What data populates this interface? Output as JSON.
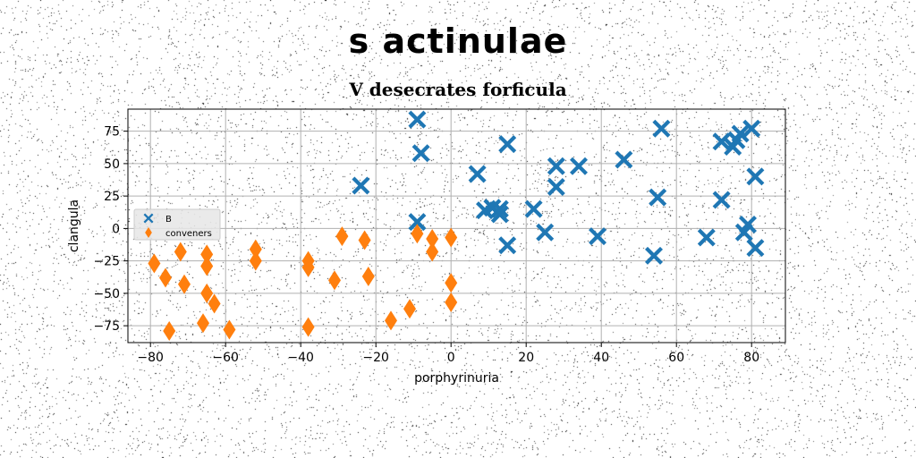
{
  "suptitle": "s actinulae",
  "chart_data": {
    "type": "scatter",
    "title": "V desecrates forficula",
    "xlabel": "porphyrinuria",
    "ylabel": "clangula",
    "xlim": [
      -86,
      89
    ],
    "ylim": [
      -88,
      92
    ],
    "xticks": [
      -80,
      -60,
      -40,
      -20,
      0,
      20,
      40,
      60,
      80
    ],
    "yticks": [
      -75,
      -50,
      -25,
      0,
      25,
      50,
      75
    ],
    "grid": true,
    "legend_position": "center-left",
    "series": [
      {
        "name": "B",
        "marker": "X",
        "color": "#1f77b4",
        "points": [
          [
            -9,
            84
          ],
          [
            -8,
            58
          ],
          [
            -24,
            33
          ],
          [
            -9,
            5
          ],
          [
            7,
            42
          ],
          [
            9,
            14
          ],
          [
            11,
            16
          ],
          [
            13,
            15
          ],
          [
            13,
            11
          ],
          [
            15,
            65
          ],
          [
            15,
            -13
          ],
          [
            22,
            15
          ],
          [
            25,
            -3
          ],
          [
            28,
            48
          ],
          [
            28,
            32
          ],
          [
            34,
            48
          ],
          [
            39,
            -6
          ],
          [
            46,
            53
          ],
          [
            55,
            24
          ],
          [
            56,
            77
          ],
          [
            54,
            -21
          ],
          [
            68,
            -7
          ],
          [
            72,
            67
          ],
          [
            72,
            22
          ],
          [
            75,
            63
          ],
          [
            76,
            68
          ],
          [
            77,
            73
          ],
          [
            80,
            77
          ],
          [
            79,
            3
          ],
          [
            78,
            -3
          ],
          [
            81,
            40
          ],
          [
            81,
            -15
          ]
        ]
      },
      {
        "name": "conveners",
        "marker": "d",
        "color": "#ff7f0e",
        "points": [
          [
            -79,
            -27
          ],
          [
            -76,
            -38
          ],
          [
            -75,
            -79
          ],
          [
            -72,
            -18
          ],
          [
            -71,
            -43
          ],
          [
            -66,
            -73
          ],
          [
            -65,
            -20
          ],
          [
            -65,
            -29
          ],
          [
            -65,
            -50
          ],
          [
            -63,
            -58
          ],
          [
            -59,
            -78
          ],
          [
            -52,
            -16
          ],
          [
            -52,
            -25
          ],
          [
            -38,
            -25
          ],
          [
            -38,
            -30
          ],
          [
            -38,
            -76
          ],
          [
            -31,
            -40
          ],
          [
            -29,
            -6
          ],
          [
            -23,
            -9
          ],
          [
            -22,
            -37
          ],
          [
            -16,
            -71
          ],
          [
            -11,
            -62
          ],
          [
            -9,
            -4
          ],
          [
            -5,
            -8
          ],
          [
            -5,
            -18
          ],
          [
            0,
            -7
          ],
          [
            0,
            -42
          ],
          [
            0,
            -57
          ]
        ]
      }
    ]
  }
}
